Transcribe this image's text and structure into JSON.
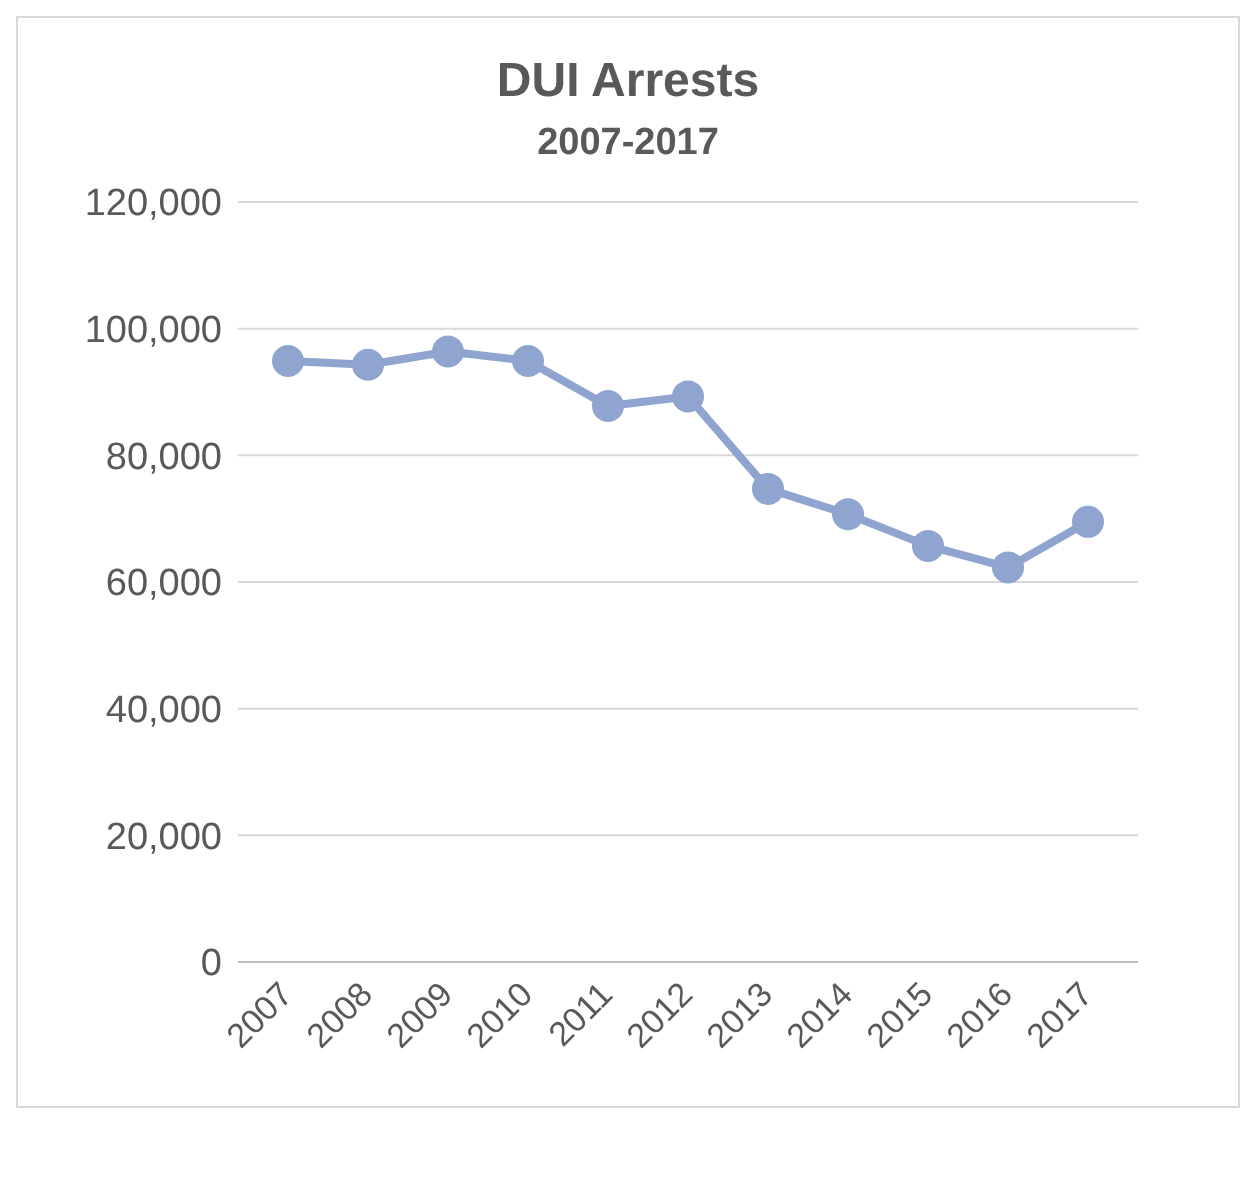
{
  "chart_data": {
    "type": "line",
    "title": "DUI Arrests",
    "subtitle": "2007-2017",
    "categories": [
      "2007",
      "2008",
      "2009",
      "2010",
      "2011",
      "2012",
      "2013",
      "2014",
      "2015",
      "2016",
      "2017"
    ],
    "series": [
      {
        "color": "#8fa4cf",
        "values": [
          94900,
          94300,
          96400,
          94900,
          87800,
          89300,
          74700,
          70700,
          65700,
          62300,
          69500
        ]
      }
    ],
    "ylim": [
      0,
      120000
    ],
    "yticks": [
      0,
      {
        "value": 20000,
        "label": "20,000"
      },
      {
        "value": 40000,
        "label": "40,000"
      },
      {
        "value": 60000,
        "label": "60,000"
      },
      {
        "value": 80000,
        "label": "80,000"
      },
      {
        "value": 100000,
        "label": "100,000"
      },
      {
        "value": 120000,
        "label": "120,000"
      }
    ],
    "grid": "y",
    "legend": false,
    "marker": "circle",
    "line_style": "solid"
  }
}
